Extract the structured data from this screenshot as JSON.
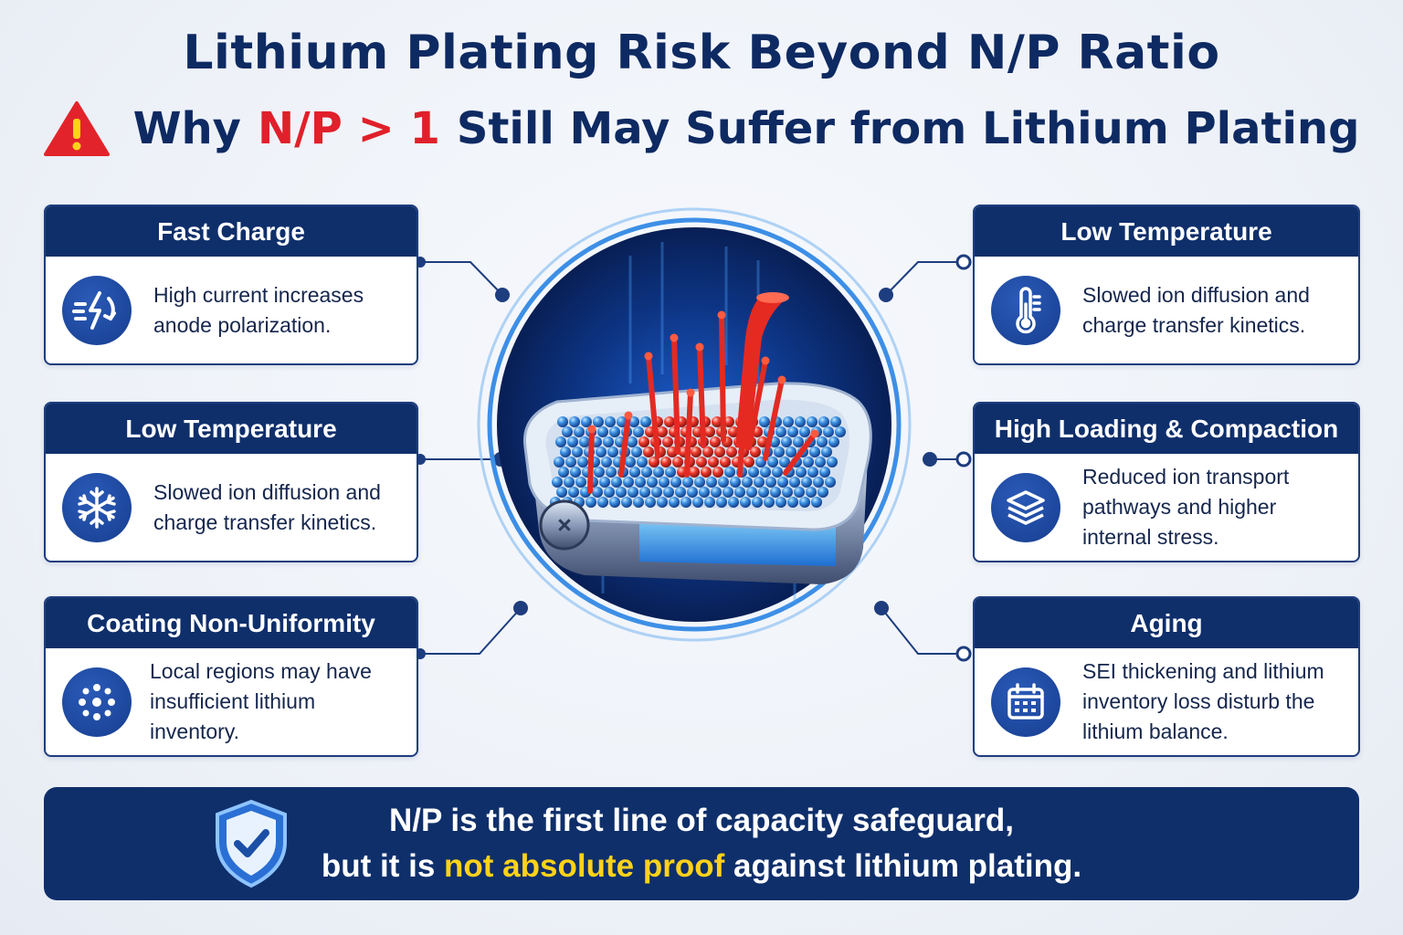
{
  "header": {
    "title": "Lithium Plating Risk Beyond N/P Ratio",
    "subtitle_pre": "Why",
    "subtitle_highlight": "N/P > 1",
    "subtitle_post": "Still May Suffer from Lithium Plating",
    "warning_icon": "warning-triangle-icon"
  },
  "cards": {
    "left": [
      {
        "title": "Fast Charge",
        "text": "High current increases anode polarization.",
        "icon": "fast-charge-icon"
      },
      {
        "title": "Low Temperature",
        "text": "Slowed ion diffusion and charge transfer kinetics.",
        "icon": "snowflake-icon"
      },
      {
        "title": "Coating Non-Uniformity",
        "text": "Local regions may have insufficient lithium inventory.",
        "icon": "dots-icon"
      }
    ],
    "right": [
      {
        "title": "Low Temperature",
        "text": "Slowed ion diffusion and charge transfer kinetics.",
        "icon": "thermometer-icon"
      },
      {
        "title": "High Loading & Compaction",
        "text": "Reduced ion transport pathways and higher internal stress.",
        "icon": "layers-icon"
      },
      {
        "title": "Aging",
        "text": "SEI thickening and lithium inventory loss disturb the lithium balance.",
        "icon": "calendar-icon"
      }
    ]
  },
  "footer": {
    "line1": "N/P is the first line of capacity safeguard,",
    "line2_pre": "but it is",
    "line2_highlight": "not absolute proof",
    "line2_post": "against lithium plating.",
    "icon": "shield-check-icon"
  },
  "colors": {
    "navy": "#0f2f6b",
    "accent_red": "#e0202a",
    "highlight_yellow": "#ffd21a",
    "icon_blue": "#1d4aa3"
  }
}
